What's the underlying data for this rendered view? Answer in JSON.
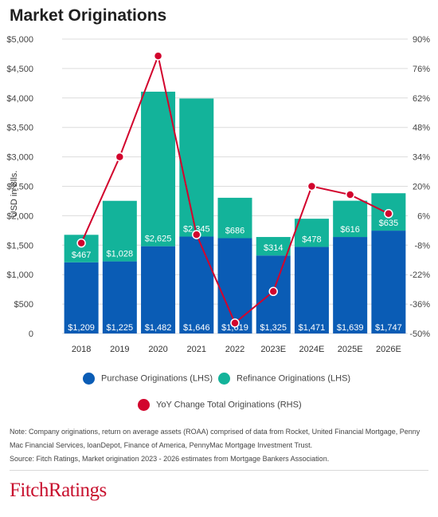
{
  "title": "Market Originations",
  "note_lines": [
    "Note: Company originations, return on average assets (ROAA) comprised of data  from Rocket, United Financial Mortgage, Penny",
    "Mac Financial Services, loanDepot, Finance of America, PennyMac Mortgage Investment Trust.",
    "Source: Fitch Ratings,  Market origination 2023 - 2026 estimates from Mortgage Bankers Association."
  ],
  "brand": "FitchRatings",
  "colors": {
    "purchase": "#0a5cb5",
    "refinance": "#13b39a",
    "yoy": "#d2042d"
  },
  "chart_data": {
    "type": "bar",
    "stacked": true,
    "categories": [
      "2018",
      "2019",
      "2020",
      "2021",
      "2022",
      "2023E",
      "2024E",
      "2025E",
      "2026E"
    ],
    "series": [
      {
        "name": "Purchase Originations (LHS)",
        "values": [
          1209,
          1225,
          1482,
          1646,
          1619,
          1325,
          1471,
          1639,
          1747
        ],
        "labels": [
          "$1,209",
          "$1,225",
          "$1,482",
          "$1,646",
          "$1,619",
          "$1,325",
          "$1,471",
          "$1,639",
          "$1,747"
        ]
      },
      {
        "name": "Refinance Originations (LHS)",
        "values": [
          467,
          1028,
          2625,
          2345,
          686,
          314,
          478,
          616,
          635
        ],
        "labels": [
          "$467",
          "$1,028",
          "$2,625",
          "$2,345",
          "$686",
          "$314",
          "$478",
          "$616",
          "$635"
        ]
      }
    ],
    "line_series": {
      "name": "YoY Change Total Originations (RHS)",
      "axis": "right",
      "values": [
        -7,
        34,
        82,
        -3,
        -45,
        -30,
        20,
        16,
        7
      ]
    },
    "ylabel": "USD in Blls.",
    "ylim": [
      0,
      5000
    ],
    "yticks": [
      "0",
      "$500",
      "$1,000",
      "$1,500",
      "$2,000",
      "$2,500",
      "$3,000",
      "$3,500",
      "$4,000",
      "$4,500",
      "$5,000"
    ],
    "y2lim": [
      -50,
      90
    ],
    "y2ticks": [
      "-50%",
      "-36%",
      "-22%",
      "-8%",
      "6%",
      "20%",
      "34%",
      "48%",
      "62%",
      "76%",
      "90%"
    ],
    "grid": true,
    "legend_position": "bottom"
  }
}
